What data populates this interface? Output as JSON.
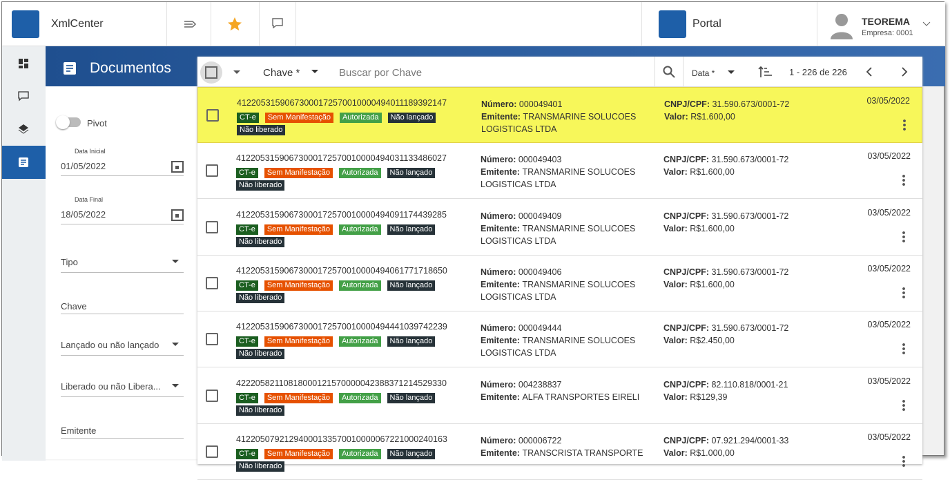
{
  "app": {
    "name": "XmlCenter",
    "portal": "Portal",
    "user": "TEOREMA",
    "company": "Empresa: 0001"
  },
  "page": {
    "title": "Documentos"
  },
  "filters": {
    "pivot": "Pivot",
    "start_label": "Data Inicial",
    "start_value": "01/05/2022",
    "end_label": "Data Final",
    "end_value": "18/05/2022",
    "tipo": "Tipo",
    "chave": "Chave",
    "lancado": "Lançado ou não lançado",
    "liberado": "Liberado ou não Libera...",
    "emitente": "Emitente"
  },
  "toolbar": {
    "search_field": "Chave *",
    "search_placeholder": "Buscar por Chave",
    "sort_field": "Data *",
    "pagination": "1 - 226 de 226"
  },
  "labels": {
    "numero": "Número:",
    "emitente": "Emitente:",
    "cnpj": "CNPJ/CPF:",
    "valor": "Valor:"
  },
  "tags": [
    "CT-e",
    "Sem Manifestação",
    "Autorizada",
    "Não lançado",
    "Não liberado"
  ],
  "rows": [
    {
      "key": "41220531590673000172570010000494011189392147",
      "numero": "000049401",
      "emitente": "TRANSMARINE SOLUCOES LOGISTICAS LTDA",
      "cnpj": "31.590.673/0001-72",
      "valor": "R$1.600,00",
      "date": "03/05/2022"
    },
    {
      "key": "41220531590673000172570010000494031133486027",
      "numero": "000049403",
      "emitente": "TRANSMARINE SOLUCOES LOGISTICAS LTDA",
      "cnpj": "31.590.673/0001-72",
      "valor": "R$1.600,00",
      "date": "03/05/2022"
    },
    {
      "key": "41220531590673000172570010000494091174439285",
      "numero": "000049409",
      "emitente": "TRANSMARINE SOLUCOES LOGISTICAS LTDA",
      "cnpj": "31.590.673/0001-72",
      "valor": "R$1.600,00",
      "date": "03/05/2022"
    },
    {
      "key": "41220531590673000172570010000494061771718650",
      "numero": "000049406",
      "emitente": "TRANSMARINE SOLUCOES LOGISTICAS LTDA",
      "cnpj": "31.590.673/0001-72",
      "valor": "R$1.600,00",
      "date": "03/05/2022"
    },
    {
      "key": "41220531590673000172570010000494441039742239",
      "numero": "000049444",
      "emitente": "TRANSMARINE SOLUCOES LOGISTICAS LTDA",
      "cnpj": "31.590.673/0001-72",
      "valor": "R$2.450,00",
      "date": "03/05/2022"
    },
    {
      "key": "42220582110818000121570000042388371214529330",
      "numero": "004238837",
      "emitente": "ALFA TRANSPORTES EIRELI",
      "cnpj": "82.110.818/0001-21",
      "valor": "R$129,39",
      "date": "03/05/2022"
    },
    {
      "key": "41220507921294000133570010000067221000240163",
      "numero": "000006722",
      "emitente": "TRANSCRISTA TRANSPORTE",
      "cnpj": "07.921.294/0001-33",
      "valor": "R$1.000,00",
      "date": "03/05/2022"
    }
  ]
}
